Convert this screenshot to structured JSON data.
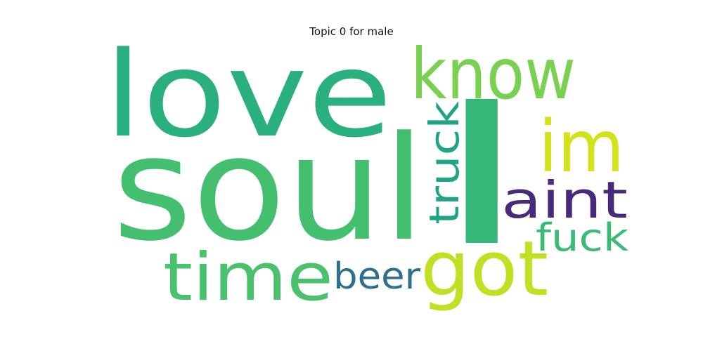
{
  "title": "Topic 0 for male",
  "words": [
    {
      "text": "soul",
      "color": "#44bf70"
    },
    {
      "text": "love",
      "color": "#2ab07f"
    },
    {
      "text": "l",
      "color": "#35b779"
    },
    {
      "text": "know",
      "color": "#7ad151"
    },
    {
      "text": "im",
      "color": "#d2e21b"
    },
    {
      "text": "got",
      "color": "#c2df23"
    },
    {
      "text": "time",
      "color": "#4ac16d"
    },
    {
      "text": "aint",
      "color": "#472a7a"
    },
    {
      "text": "truck",
      "color": "#20a486"
    },
    {
      "text": "fuck",
      "color": "#3bbb75"
    },
    {
      "text": "beer",
      "color": "#2e6f8e"
    }
  ]
}
